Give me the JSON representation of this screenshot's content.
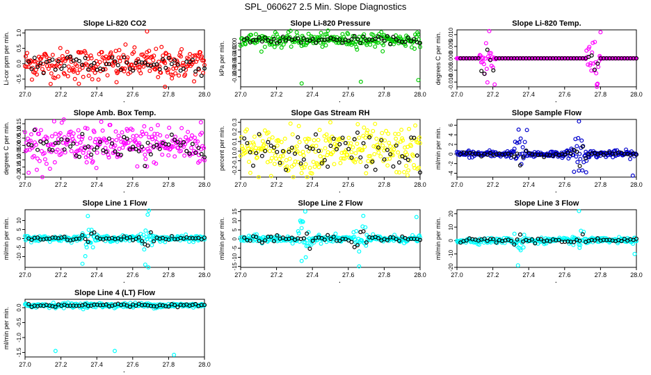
{
  "page": {
    "title": "SPL_060627  2.5 Min. Slope Diagnostics"
  },
  "colors": {
    "red": "#ff0000",
    "green": "#00cc00",
    "magenta": "#ff00ff",
    "yellow": "#ffff00",
    "blue": "#0000cc",
    "cyan": "#00ffff",
    "black": "#000000"
  },
  "chart_data": [
    {
      "type": "scatter",
      "title": "Slope Li-820 CO2",
      "ylabel": "Li-cor ppm per min.",
      "xlim": [
        27.0,
        28.0
      ],
      "ylim": [
        -0.75,
        1.1
      ],
      "xticks": [
        "27.0",
        "27.2",
        "27.4",
        "27.6",
        "27.8",
        "28.0"
      ],
      "yticks": [
        "-0.5",
        "0.0",
        "0.5",
        "1.0"
      ],
      "color": "red",
      "noise": 0.25,
      "spikes": [
        [
          27.68,
          1.05
        ],
        [
          27.78,
          -0.75
        ],
        [
          27.51,
          -0.6
        ],
        [
          27.3,
          -0.65
        ]
      ],
      "black_noise": 0.18
    },
    {
      "type": "scatter",
      "title": "Slope Li-820 Pressure",
      "ylabel": "kPa per min.",
      "xlim": [
        27.0,
        28.0
      ],
      "ylim": [
        -0.13,
        0.04
      ],
      "xticks": [
        "27.0",
        "27.2",
        "27.4",
        "27.6",
        "27.8",
        "28.0"
      ],
      "yticks": [
        "-0.10",
        "-0.08",
        "-0.06",
        "-0.04",
        "-0.02",
        "0.00"
      ],
      "color": "green",
      "noise": 0.01,
      "center": 0.01,
      "spikes": [
        [
          27.34,
          -0.12
        ],
        [
          27.67,
          -0.115
        ],
        [
          27.99,
          -0.11
        ]
      ],
      "black_noise": 0.005
    },
    {
      "type": "scatter",
      "title": "Slope Li-820 Temp.",
      "ylabel": "degrees C per min.",
      "xlim": [
        27.0,
        28.0
      ],
      "ylim": [
        -0.012,
        0.012
      ],
      "xticks": [
        "27.0",
        "27.2",
        "27.4",
        "27.6",
        "27.8",
        "28.0"
      ],
      "yticks": [
        "-0.010",
        "-0.005",
        "0.000",
        "0.005",
        "0.010"
      ],
      "color": "magenta",
      "noise": 0.0,
      "bursts": [
        [
          27.17,
          0.009
        ],
        [
          27.76,
          0.009
        ]
      ],
      "spikes": [
        [
          27.18,
          0.0115
        ],
        [
          27.21,
          -0.011
        ],
        [
          27.78,
          -0.011
        ],
        [
          27.8,
          0.011
        ]
      ],
      "black_noise": 0.0
    },
    {
      "type": "scatter",
      "title": "Slope Amb. Box Temp.",
      "ylabel": "degrees C per min.",
      "xlim": [
        27.0,
        28.0
      ],
      "ylim": [
        -0.22,
        0.18
      ],
      "xticks": [
        "27.0",
        "27.2",
        "27.4",
        "27.6",
        "27.8",
        "28.0"
      ],
      "yticks": [
        "-0.20",
        "-0.15",
        "-0.10",
        "-0.05",
        "0.00",
        "0.05",
        "0.10",
        "0.15"
      ],
      "color": "magenta",
      "noise": 0.07,
      "spikes": [
        [
          27.98,
          0.16
        ],
        [
          27.74,
          0.14
        ],
        [
          27.02,
          -0.19
        ]
      ],
      "black_noise": 0.05
    },
    {
      "type": "scatter",
      "title": "Slope Gas Stream RH",
      "ylabel": "percent per min.",
      "xlim": [
        27.0,
        28.0
      ],
      "ylim": [
        -0.27,
        0.33
      ],
      "xticks": [
        "27.0",
        "27.2",
        "27.4",
        "27.6",
        "27.8",
        "28.0"
      ],
      "yticks": [
        "-0.2",
        "-0.1",
        "0.0",
        "0.1",
        "0.2",
        "0.3"
      ],
      "color": "yellow",
      "noise": 0.12,
      "spikes": [
        [
          27.5,
          0.3
        ],
        [
          27.93,
          -0.25
        ]
      ],
      "black_noise": 0.1
    },
    {
      "type": "scatter",
      "title": "Slope Sample Flow",
      "ylabel": "ml/min per min.",
      "xlim": [
        27.0,
        28.0
      ],
      "ylim": [
        -4.8,
        7.2
      ],
      "xticks": [
        "27.0",
        "27.2",
        "27.4",
        "27.6",
        "27.8",
        "28.0"
      ],
      "yticks": [
        "-4",
        "-2",
        "0",
        "2",
        "4",
        "6"
      ],
      "color": "blue",
      "noise": 0.35,
      "bursts": [
        [
          27.35,
          3.0
        ],
        [
          27.68,
          3.5
        ]
      ],
      "spikes": [
        [
          27.39,
          5.0
        ],
        [
          27.68,
          6.8
        ],
        [
          27.98,
          -4.5
        ],
        [
          27.72,
          -3.8
        ]
      ],
      "black_noise": 0.2
    },
    {
      "type": "scatter",
      "title": "Slope Line 1 Flow",
      "ylabel": "ml/min per min.",
      "xlim": [
        27.0,
        28.0
      ],
      "ylim": [
        -16,
        16
      ],
      "xticks": [
        "27.0",
        "27.2",
        "27.4",
        "27.6",
        "27.8",
        "28.0"
      ],
      "yticks": [
        "-10",
        "-5",
        "0",
        "5",
        "10"
      ],
      "color": "cyan",
      "noise": 0.8,
      "bursts": [
        [
          27.35,
          6.0
        ],
        [
          27.68,
          6.0
        ]
      ],
      "spikes": [
        [
          27.35,
          12.5
        ],
        [
          27.32,
          -14
        ],
        [
          27.69,
          15.5
        ],
        [
          27.67,
          -14.5
        ]
      ],
      "black_noise": 0.5
    },
    {
      "type": "scatter",
      "title": "Slope Line 2 Flow",
      "ylabel": "ml/min per min.",
      "xlim": [
        27.0,
        28.0
      ],
      "ylim": [
        -15.5,
        16
      ],
      "xticks": [
        "27.0",
        "27.2",
        "27.4",
        "27.6",
        "27.8",
        "28.0"
      ],
      "yticks": [
        "-15",
        "-10",
        "-5",
        "0",
        "5",
        "10",
        "15"
      ],
      "color": "cyan",
      "noise": 1.0,
      "bursts": [
        [
          27.35,
          6.0
        ],
        [
          27.67,
          6.0
        ]
      ],
      "spikes": [
        [
          27.36,
          15
        ],
        [
          27.34,
          -12
        ],
        [
          27.66,
          -15
        ],
        [
          27.98,
          12
        ]
      ],
      "black_noise": 0.8
    },
    {
      "type": "scatter",
      "title": "Slope Line 3 Flow",
      "ylabel": "ml/min per min.",
      "xlim": [
        27.0,
        28.0
      ],
      "ylim": [
        -20,
        23
      ],
      "xticks": [
        "27.0",
        "27.2",
        "27.4",
        "27.6",
        "27.8",
        "28.0"
      ],
      "yticks": [
        "-20",
        "-10",
        "0",
        "10",
        "20"
      ],
      "color": "cyan",
      "noise": 1.0,
      "bursts": [
        [
          27.35,
          6.0
        ],
        [
          27.68,
          6.0
        ]
      ],
      "spikes": [
        [
          27.68,
          22
        ],
        [
          27.34,
          -18.5
        ],
        [
          27.99,
          -10
        ]
      ],
      "black_noise": 0.8
    },
    {
      "type": "scatter",
      "title": "Slope Line 4 (LT) Flow",
      "ylabel": "ml/min per min.",
      "xlim": [
        27.0,
        28.0
      ],
      "ylim": [
        -1.65,
        0.28
      ],
      "xticks": [
        "27.0",
        "27.2",
        "27.4",
        "27.6",
        "27.8",
        "28.0"
      ],
      "yticks": [
        "-1.5",
        "-1.0",
        "-0.5",
        "0.0"
      ],
      "color": "cyan",
      "noise": 0.04,
      "center": 0.08,
      "spikes": [
        [
          27.17,
          -1.45
        ],
        [
          27.5,
          -1.45
        ],
        [
          27.83,
          -1.58
        ]
      ],
      "black_noise": 0.03
    }
  ]
}
